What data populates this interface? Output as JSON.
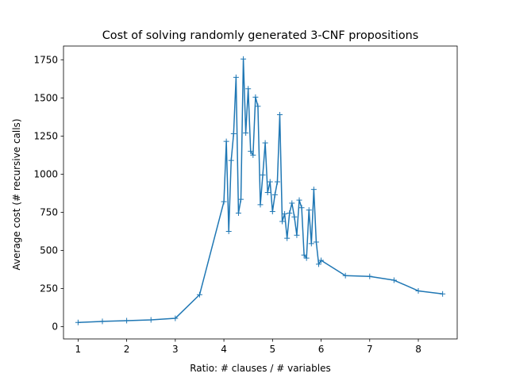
{
  "chart_data": {
    "type": "line",
    "title": "Cost of solving randomly generated 3-CNF propositions",
    "xlabel": "Ratio: # clauses / # variables",
    "ylabel": "Average cost (# recursive calls)",
    "xlim": [
      0.7,
      8.8
    ],
    "ylim": [
      -80,
      1840
    ],
    "xticks": [
      1,
      2,
      3,
      4,
      5,
      6,
      7,
      8
    ],
    "yticks": [
      0,
      250,
      500,
      750,
      1000,
      1250,
      1500,
      1750
    ],
    "grid": false,
    "marker": "+",
    "color": "#1f77b4",
    "series": [
      {
        "x": [
          1.0,
          1.5,
          2.0,
          2.5,
          3.0,
          3.5,
          4.0,
          4.05,
          4.1,
          4.15,
          4.2,
          4.25,
          4.3,
          4.35,
          4.4,
          4.45,
          4.5,
          4.55,
          4.6,
          4.65,
          4.7,
          4.75,
          4.8,
          4.85,
          4.9,
          4.95,
          5.0,
          5.05,
          5.1,
          5.15,
          5.2,
          5.25,
          5.3,
          5.35,
          5.4,
          5.45,
          5.5,
          5.55,
          5.6,
          5.65,
          5.7,
          5.75,
          5.8,
          5.85,
          5.9,
          5.95,
          6.0,
          6.5,
          7.0,
          7.5,
          8.0,
          8.5
        ],
        "y": [
          28,
          35,
          40,
          45,
          55,
          210,
          820,
          1215,
          625,
          1090,
          1265,
          1635,
          745,
          835,
          1755,
          1270,
          1560,
          1150,
          1125,
          1505,
          1445,
          800,
          995,
          1205,
          880,
          950,
          755,
          865,
          950,
          1390,
          690,
          740,
          580,
          745,
          810,
          720,
          600,
          830,
          780,
          470,
          450,
          765,
          545,
          900,
          555,
          410,
          435,
          335,
          330,
          305,
          235,
          215
        ]
      }
    ]
  }
}
